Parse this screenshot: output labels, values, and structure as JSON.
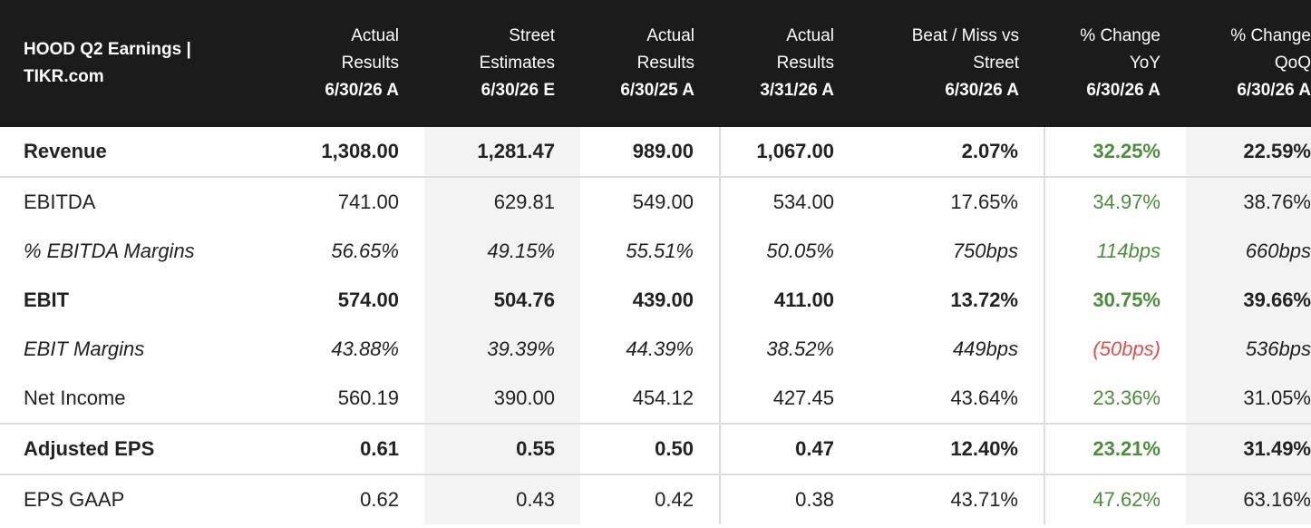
{
  "header": {
    "title": "HOOD Q2 Earnings | TIKR.com",
    "columns": [
      {
        "label": "Actual Results",
        "date": "6/30/26 A"
      },
      {
        "label": "Street Estimates",
        "date": "6/30/26 E"
      },
      {
        "label": "Actual Results",
        "date": "6/30/25 A"
      },
      {
        "label": "Actual Results",
        "date": "3/31/26 A"
      },
      {
        "label": "Beat / Miss vs Street",
        "date": "6/30/26 A"
      },
      {
        "label": "% Change YoY",
        "date": "6/30/26 A"
      },
      {
        "label": "% Change QoQ",
        "date": "6/30/26 A"
      }
    ]
  },
  "table": {
    "rows": [
      {
        "label": "Revenue",
        "style": "bold",
        "values": [
          "1,308.00",
          "1,281.47",
          "989.00",
          "1,067.00",
          "2.07%",
          "32.25%",
          "22.59%"
        ]
      },
      {
        "label": "EBITDA",
        "style": "normal",
        "values": [
          "741.00",
          "629.81",
          "549.00",
          "534.00",
          "17.65%",
          "34.97%",
          "38.76%"
        ]
      },
      {
        "label": "% EBITDA Margins",
        "style": "italic",
        "values": [
          "56.65%",
          "49.15%",
          "55.51%",
          "50.05%",
          "750bps",
          "114bps",
          "660bps"
        ]
      },
      {
        "label": "EBIT",
        "style": "bold",
        "values": [
          "574.00",
          "504.76",
          "439.00",
          "411.00",
          "13.72%",
          "30.75%",
          "39.66%"
        ]
      },
      {
        "label": "EBIT Margins",
        "style": "italic",
        "values": [
          "43.88%",
          "39.39%",
          "44.39%",
          "38.52%",
          "449bps",
          "(50bps)",
          "536bps"
        ]
      },
      {
        "label": "Net Income",
        "style": "normal",
        "values": [
          "560.19",
          "390.00",
          "454.12",
          "427.45",
          "43.64%",
          "23.36%",
          "31.05%"
        ]
      },
      {
        "label": "Adjusted EPS",
        "style": "bold",
        "values": [
          "0.61",
          "0.55",
          "0.50",
          "0.47",
          "12.40%",
          "23.21%",
          "31.49%"
        ]
      },
      {
        "label": "EPS GAAP",
        "style": "normal",
        "values": [
          "0.62",
          "0.43",
          "0.42",
          "0.38",
          "43.71%",
          "47.62%",
          "63.16%"
        ]
      }
    ]
  }
}
